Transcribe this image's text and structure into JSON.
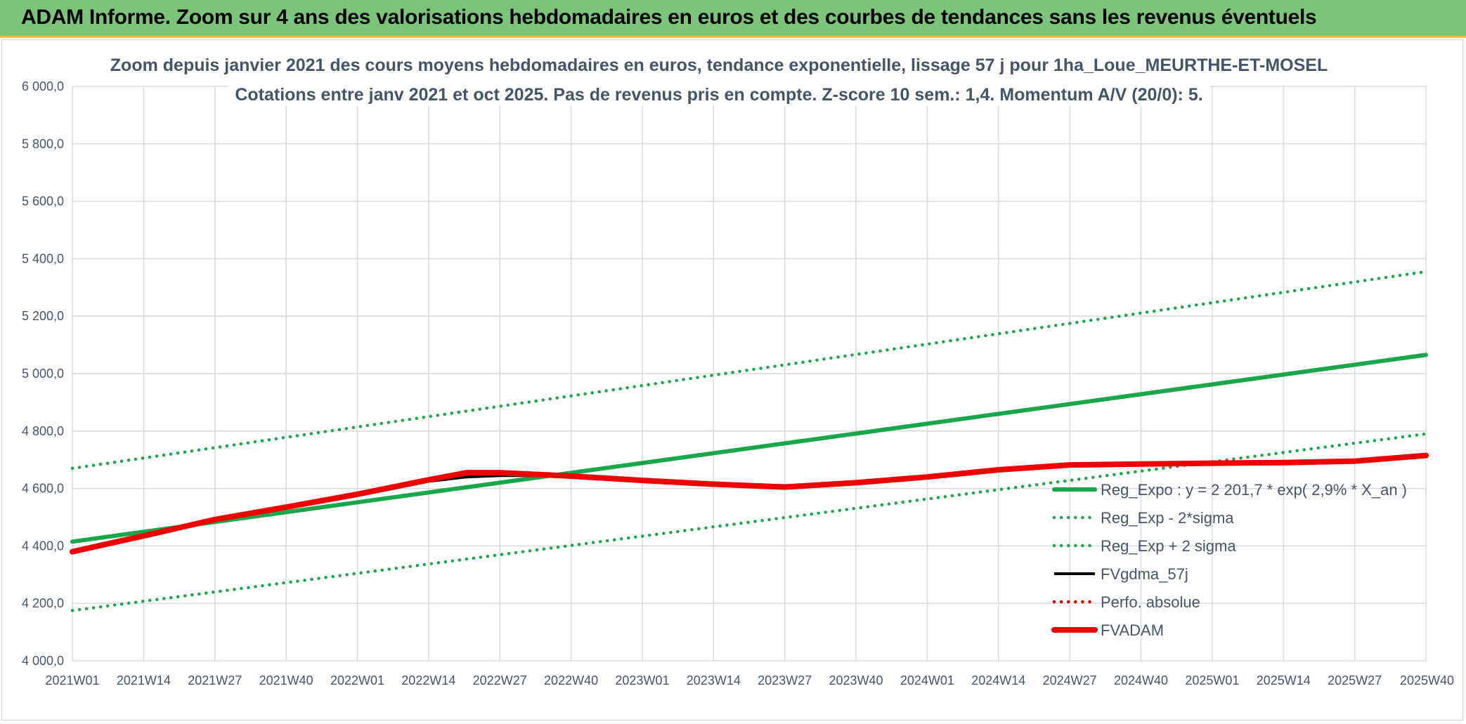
{
  "banner": {
    "title": "ADAM Informe. Zoom sur 4 ans des valorisations hebdomadaires en euros et des courbes de tendances sans les revenus éventuels"
  },
  "colors": {
    "banner_bg": "#7cc47a",
    "reg_expo": "#1aa64a",
    "sigma_lines": "#1aa64a",
    "fvgdma": "#000000",
    "perfo": "#e00000",
    "fvadam": "#ee0000",
    "grid": "#d9d9d9",
    "text": "#44546a"
  },
  "chart_data": {
    "type": "line",
    "title_lines": [
      "Zoom depuis janvier 2021 des cours moyens hebdomadaires en euros, tendance exponentielle, lissage 57 j pour 1ha_Loue_MEURTHE-ET-MOSEL",
      "Cotations entre janv 2021 et oct 2025. Pas de revenus pris en compte. Z-score 10 sem.: 1,4. Momentum A/V (20/0): 5."
    ],
    "ylim": [
      4000,
      6000
    ],
    "yticks": [
      4000,
      4200,
      4400,
      4600,
      4800,
      5000,
      5200,
      5400,
      5600,
      5800,
      6000
    ],
    "ytick_labels": [
      "4 000,0",
      "4 200,0",
      "4 400,0",
      "4 600,0",
      "4 800,0",
      "5 000,0",
      "5 200,0",
      "5 400,0",
      "5 600,0",
      "5 800,0",
      "6 000,0"
    ],
    "xlim": [
      0,
      247
    ],
    "xticks": [
      0,
      13,
      26,
      39,
      52,
      65,
      78,
      91,
      104,
      117,
      130,
      143,
      156,
      169,
      182,
      195,
      208,
      221,
      234,
      247
    ],
    "xtick_labels": [
      "2021W01",
      "2021W14",
      "2021W27",
      "2021W40",
      "2022W01",
      "2022W14",
      "2022W27",
      "2022W40",
      "2023W01",
      "2023W14",
      "2023W27",
      "2023W40",
      "2024W01",
      "2024W14",
      "2024W27",
      "2024W40",
      "2025W01",
      "2025W14",
      "2025W27",
      "2025W40"
    ],
    "grid": true,
    "legend_position": "right",
    "series": [
      {
        "name": "Reg_Expo : y = 2 201,7 * exp( 2,9% *  X_an )",
        "style": "solid-thick",
        "color": "#1aa64a",
        "x": [
          0,
          247
        ],
        "values": [
          4415,
          5065
        ]
      },
      {
        "name": "Reg_Exp - 2*sigma",
        "style": "dotted",
        "color": "#1aa64a",
        "x": [
          0,
          247
        ],
        "values": [
          4175,
          4790
        ]
      },
      {
        "name": "Reg_Exp + 2 sigma",
        "style": "dotted",
        "color": "#1aa64a",
        "x": [
          0,
          247
        ],
        "values": [
          4670,
          5355
        ]
      },
      {
        "name": "FVgdma_57j",
        "style": "solid",
        "color": "#000000",
        "x": [
          0,
          13,
          26,
          39,
          52,
          65,
          72,
          78,
          91,
          104,
          117,
          130,
          143,
          156,
          169,
          182,
          195,
          208,
          221,
          234,
          247
        ],
        "values": [
          4380,
          4435,
          4490,
          4530,
          4575,
          4625,
          4640,
          4645,
          4645,
          4630,
          4618,
          4610,
          4620,
          4640,
          4665,
          4682,
          4685,
          4688,
          4690,
          4695,
          4715
        ]
      },
      {
        "name": "Perfo. absolue",
        "style": "dotted",
        "color": "#e00000",
        "x": [],
        "values": []
      },
      {
        "name": "FVADAM",
        "style": "solid-thick",
        "color": "#ee0000",
        "x": [
          0,
          13,
          26,
          39,
          52,
          65,
          72,
          78,
          91,
          104,
          117,
          130,
          143,
          156,
          169,
          182,
          195,
          208,
          221,
          234,
          247
        ],
        "values": [
          4380,
          4435,
          4492,
          4535,
          4580,
          4630,
          4655,
          4655,
          4643,
          4628,
          4615,
          4605,
          4620,
          4640,
          4665,
          4682,
          4685,
          4688,
          4690,
          4695,
          4715
        ]
      }
    ]
  }
}
